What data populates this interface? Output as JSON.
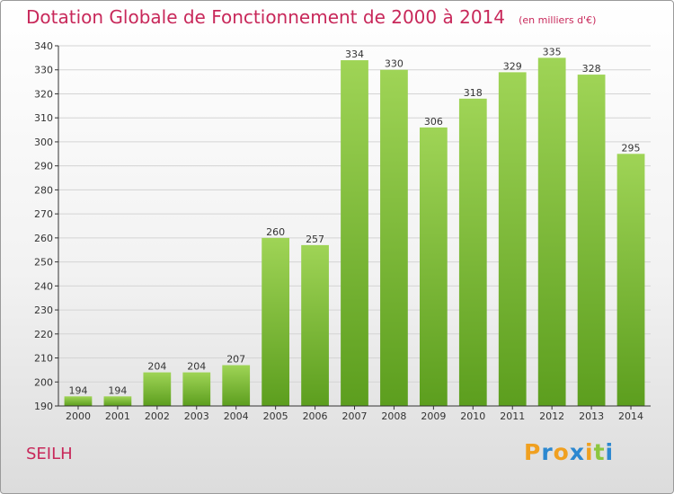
{
  "chart_title": "Dotation Globale de Fonctionnement de 2000 à 2014",
  "chart_subtitle": "(en milliers d'€)",
  "commune": "SEILH",
  "logo": {
    "text": "Proxiti",
    "letters": [
      "P",
      "r",
      "o",
      "x",
      "i",
      "t",
      "i"
    ],
    "colors": [
      "#f0a020",
      "#2c88d0",
      "#f0a020",
      "#2c88d0",
      "#f0a020",
      "#8cc63f",
      "#2c88d0"
    ]
  },
  "colors": {
    "title": "#c8285a",
    "bar_top": "#9fd456",
    "bar_bottom": "#5c9e1e",
    "axis": "#333333"
  },
  "chart_data": {
    "type": "bar",
    "categories": [
      "2000",
      "2001",
      "2002",
      "2003",
      "2004",
      "2005",
      "2006",
      "2007",
      "2008",
      "2009",
      "2010",
      "2011",
      "2012",
      "2013",
      "2014"
    ],
    "values": [
      194,
      194,
      204,
      204,
      207,
      260,
      257,
      334,
      330,
      306,
      318,
      329,
      335,
      328,
      295
    ],
    "ylim": [
      190,
      340
    ],
    "yticks": [
      190,
      200,
      210,
      220,
      230,
      240,
      250,
      260,
      270,
      280,
      290,
      300,
      310,
      320,
      330,
      340
    ],
    "grid": true,
    "xlabel": "",
    "ylabel": ""
  }
}
